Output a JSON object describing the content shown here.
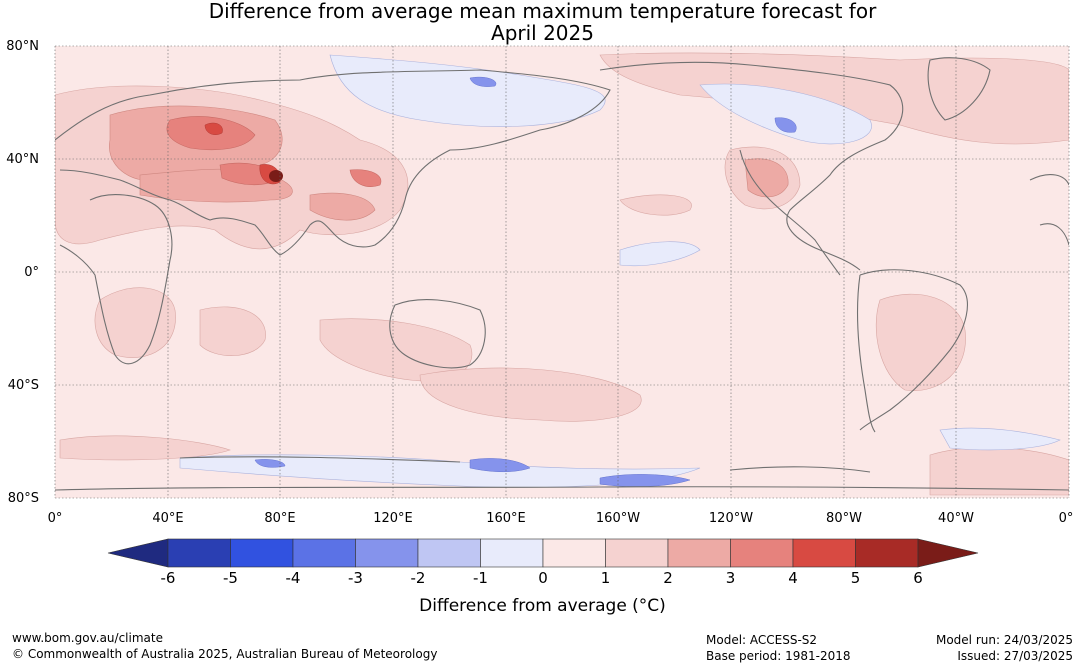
{
  "title_line1": "Difference from average mean maximum temperature forecast for",
  "title_line2": "April 2025",
  "map": {
    "y_ticks": [
      "80°N",
      "40°N",
      "0°",
      "40°S",
      "80°S"
    ],
    "x_ticks": [
      "0°",
      "40°E",
      "80°E",
      "120°E",
      "160°E",
      "160°W",
      "120°W",
      "80°W",
      "40°W",
      "0°"
    ],
    "grid": true
  },
  "colorbar": {
    "title": "Difference from average (°C)",
    "ticks": [
      "-6",
      "-5",
      "-4",
      "-3",
      "-2",
      "-1",
      "0",
      "1",
      "2",
      "3",
      "4",
      "5",
      "6"
    ],
    "colors": [
      "#2a3fb3",
      "#3152e0",
      "#5b72e6",
      "#8593ec",
      "#bfc6f3",
      "#e8ebfb",
      "#fbe8e7",
      "#f5d2d0",
      "#edaaa5",
      "#e6827d",
      "#d84a42",
      "#a82b26"
    ],
    "low_extend_color": "#1f2a80",
    "high_extend_color": "#7a1c18"
  },
  "footer": {
    "website": "www.bom.gov.au/climate",
    "copyright": "© Commonwealth of Australia 2025, Australian Bureau of Meteorology",
    "model": "Model: ACCESS-S2",
    "base_period": "Base period: 1981-2018",
    "model_run": "Model run: 24/03/2025",
    "issued": "Issued: 27/03/2025"
  }
}
